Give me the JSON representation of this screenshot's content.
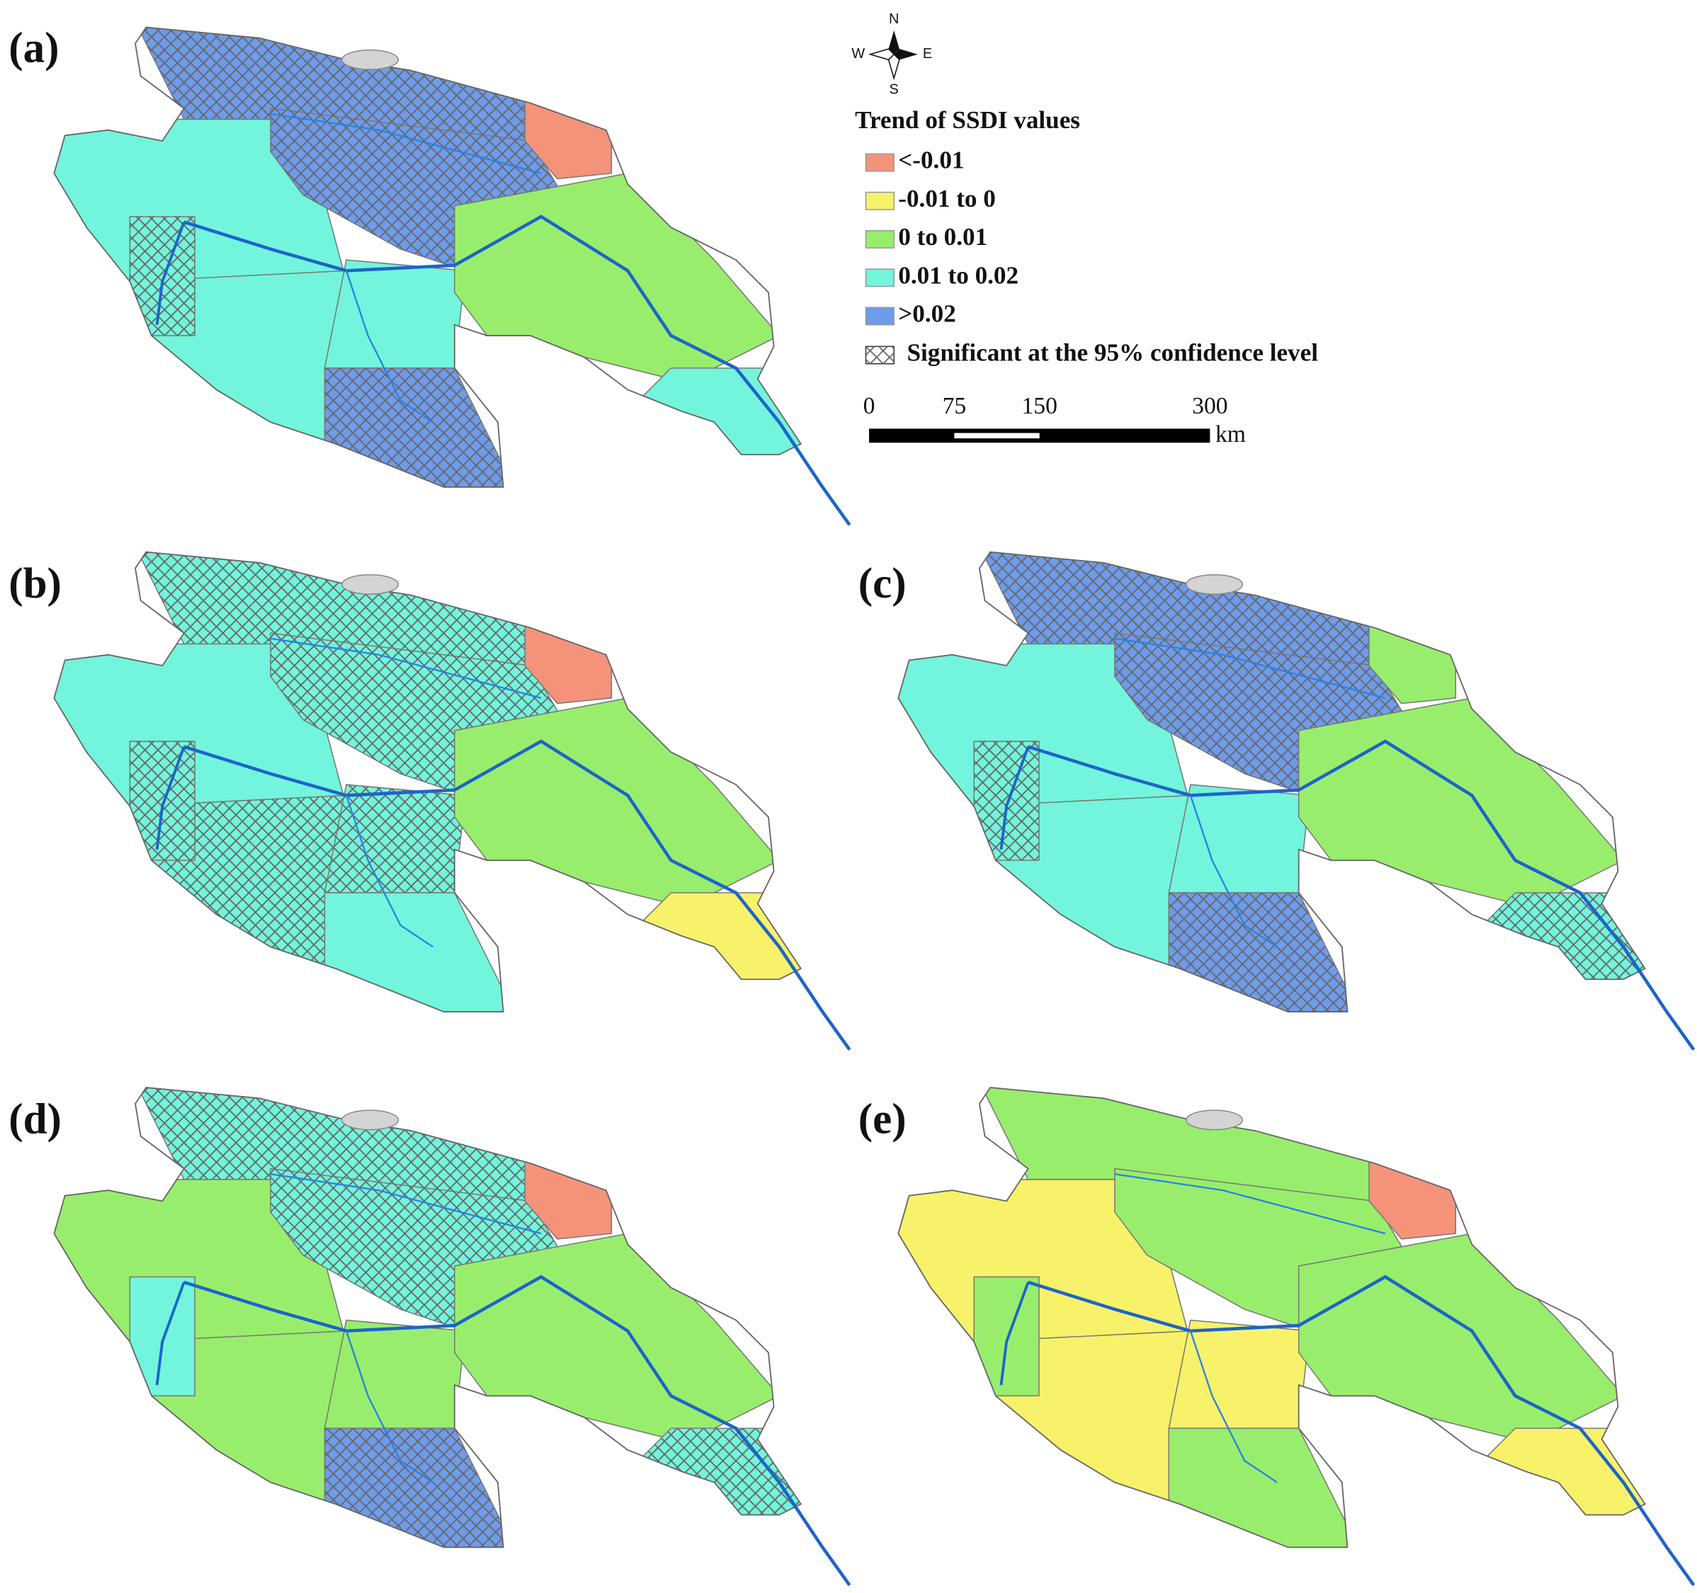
{
  "panels": [
    {
      "label": "(a)"
    },
    {
      "label": "(b)"
    },
    {
      "label": "(c)"
    },
    {
      "label": "(d)"
    },
    {
      "label": "(e)"
    }
  ],
  "legend": {
    "title": "Trend of SSDI values",
    "items": [
      {
        "label": "<-0.01",
        "color": "#f4937a"
      },
      {
        "label": "-0.01 to 0",
        "color": "#f8f26a"
      },
      {
        "label": "0 to 0.01",
        "color": "#98ee6c"
      },
      {
        "label": "0.01 to 0.02",
        "color": "#72f5dc"
      },
      {
        "label": ">0.02",
        "color": "#6e9bea"
      }
    ],
    "significance": "Significant at the 95% confidence level"
  },
  "compass": {
    "n": "N",
    "s": "S",
    "w": "W",
    "e": "E"
  },
  "scale_bar": {
    "ticks": [
      0,
      75,
      150,
      300
    ],
    "unit": "km"
  }
}
